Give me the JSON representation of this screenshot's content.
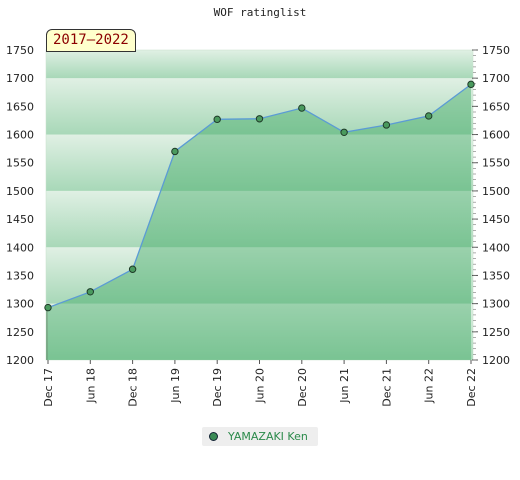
{
  "header": {
    "title": "WOF ratinglist",
    "period": "2017–2022"
  },
  "colors": {
    "band_light": "#e0f0e4",
    "band_dark": "#a8d8b8",
    "area_fill": "#3aa860",
    "line": "#5b9bd5",
    "marker": "#4a9a5e"
  },
  "legend": {
    "label": "YAMAZAKI Ken"
  },
  "chart_data": {
    "type": "area",
    "title": "WOF ratinglist",
    "xlabel": "",
    "ylabel": "",
    "ylim": [
      1200,
      1750
    ],
    "yticks": [
      1200,
      1250,
      1300,
      1350,
      1400,
      1450,
      1500,
      1550,
      1600,
      1650,
      1700,
      1750
    ],
    "categories": [
      "Dec 17",
      "Jun 18",
      "Dec 18",
      "Jun 19",
      "Dec 19",
      "Jun 20",
      "Dec 20",
      "Jun 21",
      "Dec 21",
      "Jun 22",
      "Dec 22"
    ],
    "series": [
      {
        "name": "YAMAZAKI Ken",
        "values": [
          1293,
          1321,
          1361,
          1570,
          1627,
          1628,
          1647,
          1604,
          1617,
          1633,
          1689
        ]
      }
    ],
    "grid": false,
    "legend_position": "bottom"
  }
}
